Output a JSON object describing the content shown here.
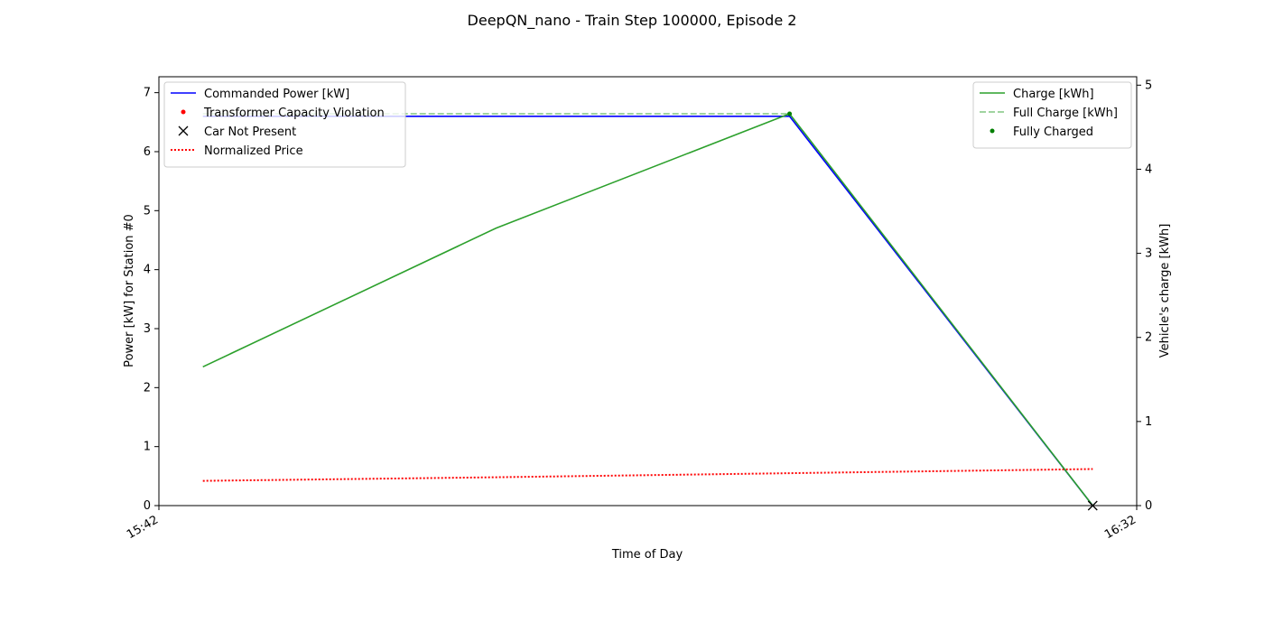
{
  "chart_data": {
    "type": "line",
    "title": "DeepQN_nano - Train Step 100000, Episode 2",
    "xlabel": "Time of Day",
    "ylabel": "Power [kW] for Station #0",
    "y2label": "Vehicle's charge [kWh]",
    "x_ticks": [
      "15:42",
      "16:32"
    ],
    "x_range_minutes": [
      0,
      50
    ],
    "ylim": [
      0,
      7.27
    ],
    "y_ticks": [
      0,
      1,
      2,
      3,
      4,
      5,
      6,
      7
    ],
    "y2lim": [
      0,
      5.1
    ],
    "y2_ticks": [
      0,
      1,
      2,
      3,
      4,
      5
    ],
    "grid": false,
    "legend_left": {
      "placement": "upper-left",
      "entries": [
        "Commanded Power [kW]",
        "Transformer Capacity Violation",
        "Car Not Present",
        "Normalized Price"
      ]
    },
    "legend_right": {
      "placement": "upper-right",
      "entries": [
        "Charge [kWh]",
        "Full Charge [kWh]",
        "Fully Charged"
      ]
    },
    "series": [
      {
        "name": "Commanded Power [kW]",
        "axis": "left",
        "color": "#0000ff",
        "style": "solid",
        "x_minutes": [
          2.25,
          32.25,
          47.75
        ],
        "y": [
          6.6,
          6.6,
          0.0
        ]
      },
      {
        "name": "Normalized Price",
        "axis": "left",
        "color": "#ff0000",
        "style": "dotted",
        "x_minutes": [
          2.25,
          17.25,
          32.25,
          47.75
        ],
        "y": [
          0.42,
          0.48,
          0.55,
          0.62
        ]
      },
      {
        "name": "Charge [kWh]",
        "axis": "right",
        "color": "#2ca02c",
        "style": "solid",
        "x_minutes": [
          2.25,
          17.25,
          32.25,
          47.75
        ],
        "y": [
          1.65,
          3.3,
          4.66,
          0.0
        ]
      },
      {
        "name": "Full Charge [kWh]",
        "axis": "right",
        "color": "#2ca02c",
        "style": "dashed",
        "x_minutes": [
          2.25,
          32.25
        ],
        "y": [
          4.66,
          4.66
        ]
      }
    ],
    "markers": [
      {
        "name": "Fully Charged",
        "axis": "right",
        "color": "#007f00",
        "shape": "dot",
        "x_minutes": [
          32.25
        ],
        "y": [
          4.66
        ]
      },
      {
        "name": "Car Not Present",
        "axis": "left",
        "color": "#000000",
        "shape": "x",
        "x_minutes": [
          47.75
        ],
        "y": [
          0.0
        ]
      }
    ]
  }
}
